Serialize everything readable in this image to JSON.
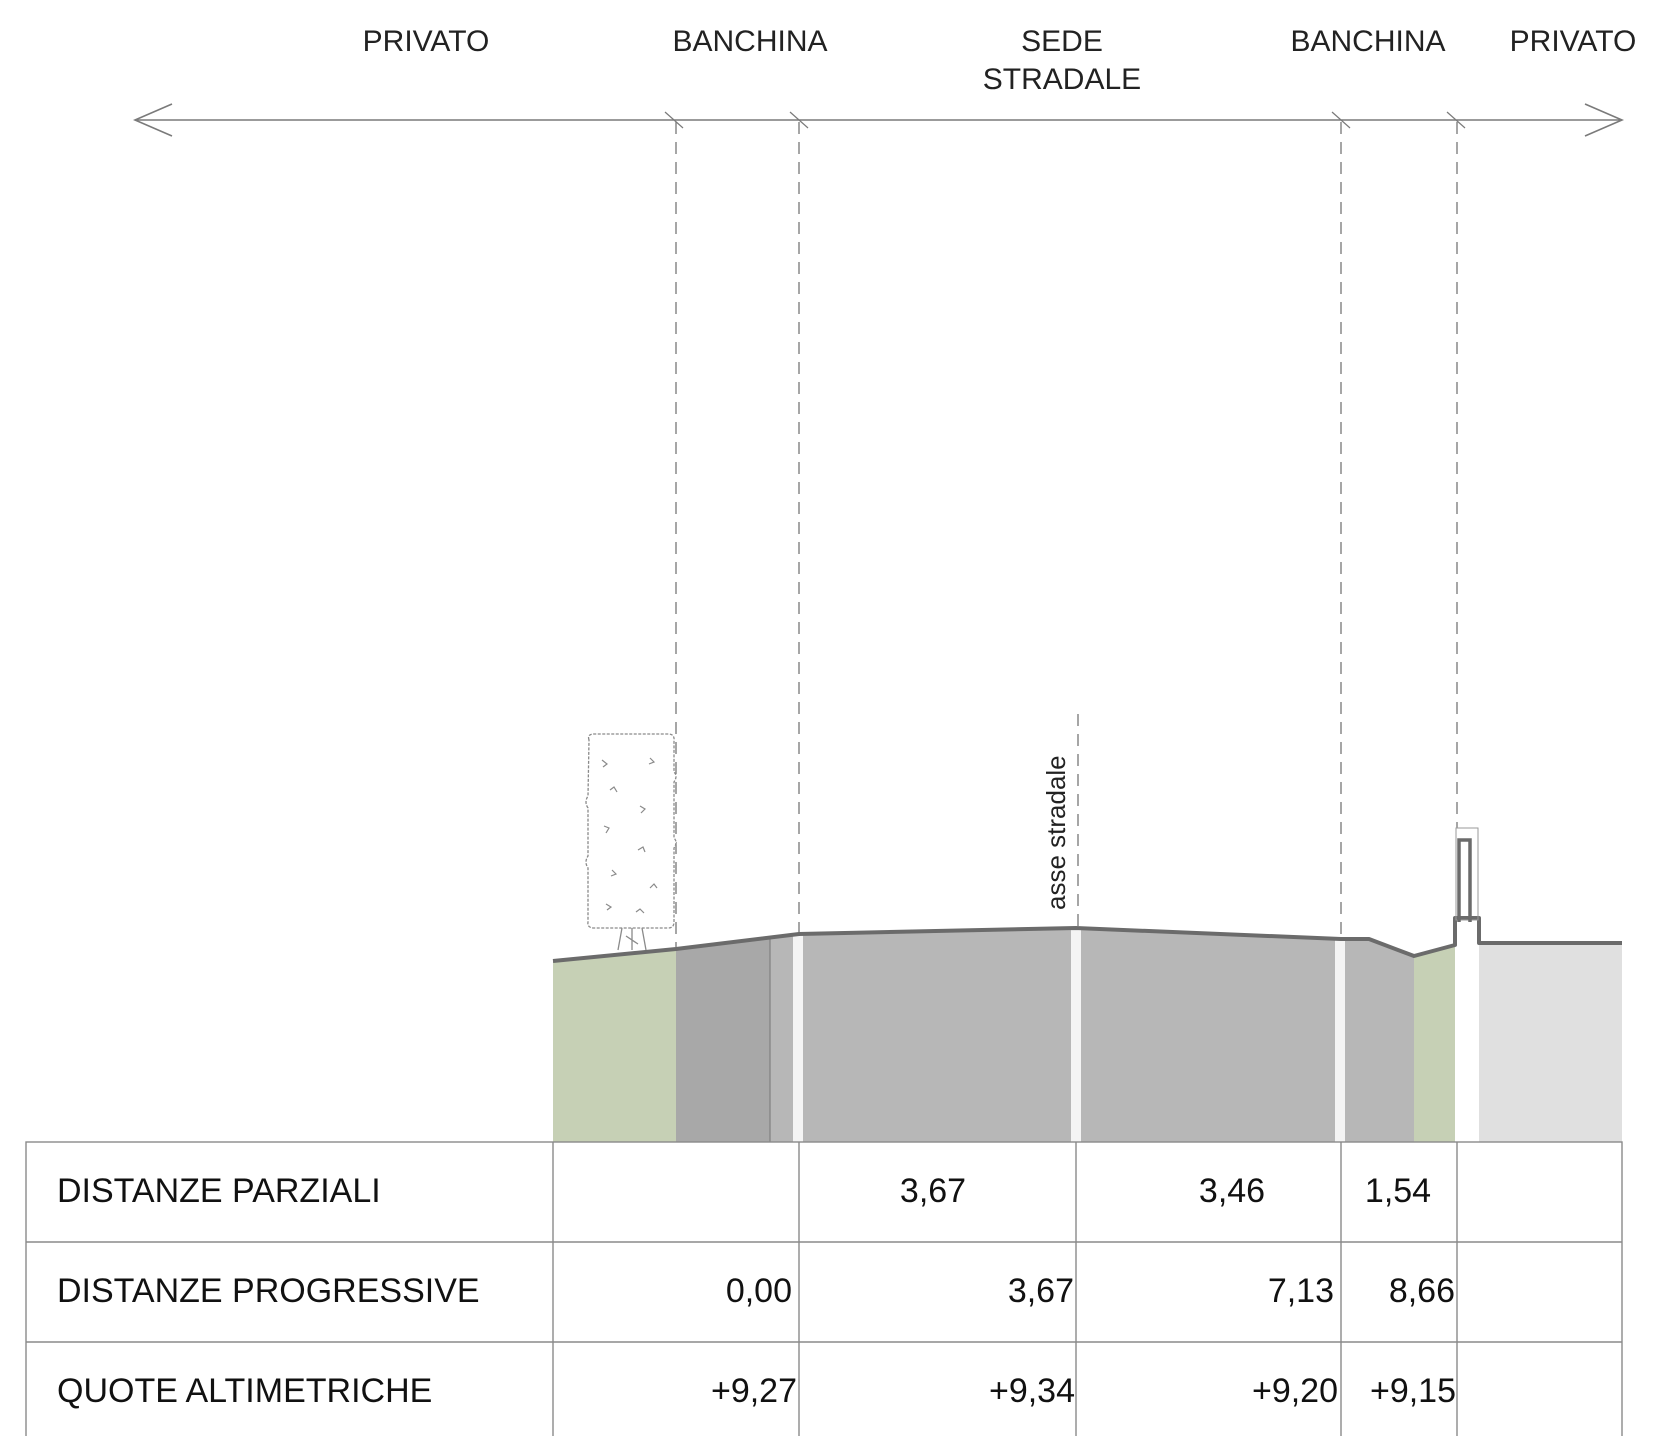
{
  "zones": {
    "privato_left": "PRIVATO",
    "banchina_left": "BANCHINA",
    "sede_line1": "SEDE",
    "sede_line2": "STRADALE",
    "banchina_right": "BANCHINA",
    "privato_right": "PRIVATO"
  },
  "axis_label": "asse stradale",
  "table": {
    "rows": [
      {
        "label": "DISTANZE PARZIALI",
        "values": [
          "",
          "3,67",
          "3,46",
          "1,54",
          ""
        ]
      },
      {
        "label": "DISTANZE PROGRESSIVE",
        "values": [
          "0,00",
          "3,67",
          "7,13",
          "8,66",
          ""
        ]
      },
      {
        "label": "QUOTE ALTIMETRICHE",
        "values": [
          "+9,27",
          "+9,34",
          "+9,20",
          "+9,15",
          ""
        ]
      }
    ]
  },
  "colors": {
    "grass": "#c6d0b5",
    "road": "#b7b7b7",
    "shoulder_dark": "#a8a8a8",
    "private_ground": "#e0e0e0",
    "profile_line": "#6b6b6b"
  }
}
